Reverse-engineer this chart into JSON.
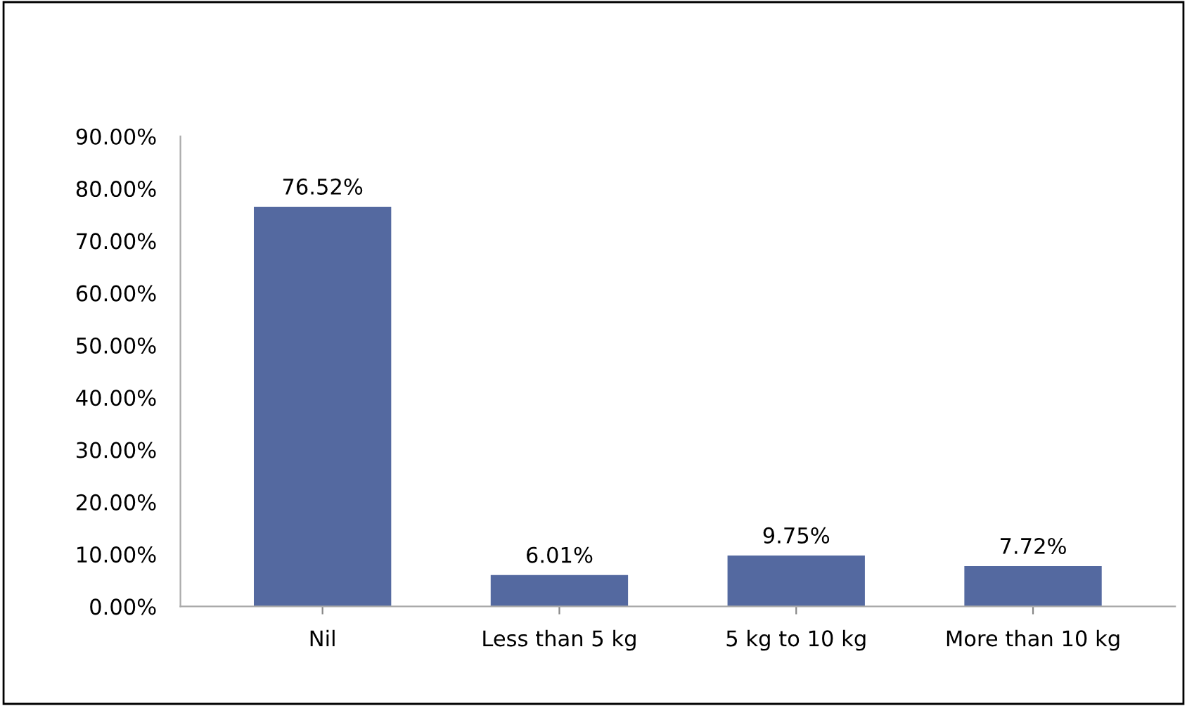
{
  "chart_data": {
    "type": "bar",
    "categories": [
      "Nil",
      "Less than 5 kg",
      "5 kg to 10 kg",
      "More than 10 kg"
    ],
    "values": [
      76.52,
      6.01,
      9.75,
      7.72
    ],
    "value_labels": [
      "76.52%",
      "6.01%",
      "9.75%",
      "7.72%"
    ],
    "color": "#5469a0",
    "ylim": [
      0,
      90
    ],
    "yticks": [
      {
        "value": 0,
        "label": "0.00%"
      },
      {
        "value": 10,
        "label": "10.00%"
      },
      {
        "value": 20,
        "label": "20.00%"
      },
      {
        "value": 30,
        "label": "30.00%"
      },
      {
        "value": 40,
        "label": "40.00%"
      },
      {
        "value": 50,
        "label": "50.00%"
      },
      {
        "value": 60,
        "label": "60.00%"
      },
      {
        "value": 70,
        "label": "70.00%"
      },
      {
        "value": 80,
        "label": "80.00%"
      },
      {
        "value": 90,
        "label": "90.00%"
      }
    ],
    "grid": false,
    "legend": false
  }
}
